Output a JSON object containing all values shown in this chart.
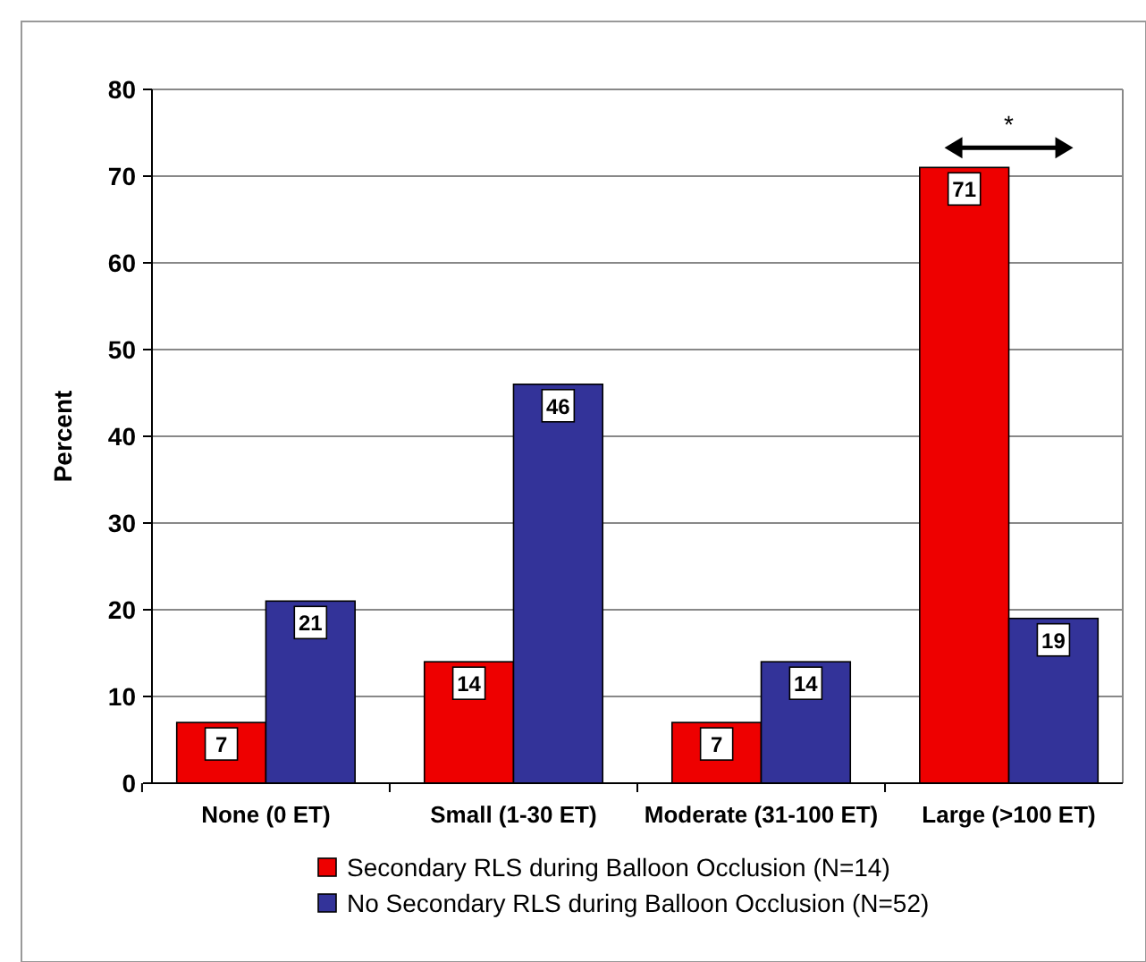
{
  "chart_data": {
    "type": "bar",
    "ylabel": "Percent",
    "categories": [
      "None (0 ET)",
      "Small (1-30 ET)",
      "Moderate (31-100 ET)",
      "Large (>100 ET)"
    ],
    "series": [
      {
        "name": "Secondary RLS during Balloon Occlusion (N=14)",
        "color": "#ee0000",
        "values": [
          7,
          14,
          7,
          71
        ]
      },
      {
        "name": "No Secondary RLS during Balloon Occlusion (N=52)",
        "color": "#333399",
        "values": [
          21,
          46,
          14,
          19
        ]
      }
    ],
    "ylim": [
      0,
      80
    ],
    "yticks": [
      0,
      10,
      20,
      30,
      40,
      50,
      60,
      70,
      80
    ],
    "grid": "y",
    "legend": "bottom",
    "data_labels": true,
    "annotations": [
      "*"
    ]
  }
}
